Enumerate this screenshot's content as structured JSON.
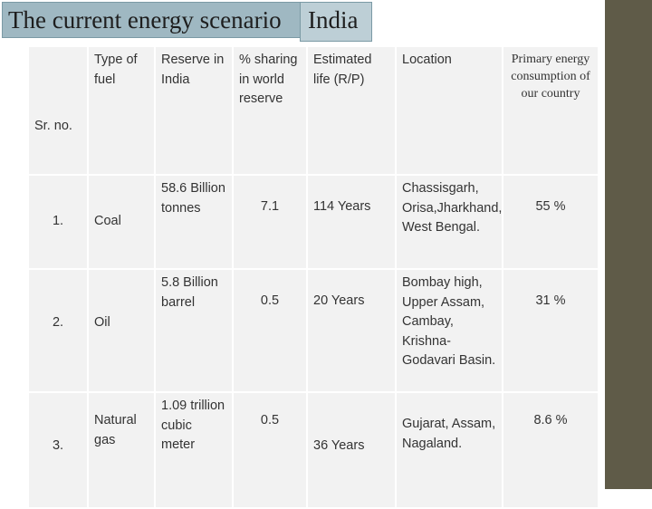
{
  "title": "The current energy scenario",
  "title_suffix": "India",
  "columns": {
    "sr_no": "Sr. no.",
    "fuel": "Type of fuel",
    "reserve": "Reserve in India",
    "share": "% sharing in world reserve",
    "life": "Estimated life (R/P)",
    "location": "Location",
    "consumption": "Primary energy consumption of our country"
  },
  "rows": [
    {
      "sr": "1.",
      "fuel": "Coal",
      "reserve": "58.6 Billion tonnes",
      "share": "7.1",
      "life": "114 Years",
      "location": "Chassisgarh, Orisa,Jharkhand, West Bengal.",
      "consumption": "55 %"
    },
    {
      "sr": "2.",
      "fuel": "Oil",
      "reserve": "5.8 Billion barrel",
      "share": "0.5",
      "life": "20 Years",
      "location": "Bombay high, Upper Assam, Cambay, Krishna-Godavari Basin.",
      "consumption": "31 %"
    },
    {
      "sr": "3.",
      "fuel": "Natural gas",
      "reserve": "1.09 trillion cubic meter",
      "share": "0.5",
      "life": "36 Years",
      "location": "Gujarat, Assam, Nagaland.",
      "consumption": "8.6 %"
    }
  ]
}
